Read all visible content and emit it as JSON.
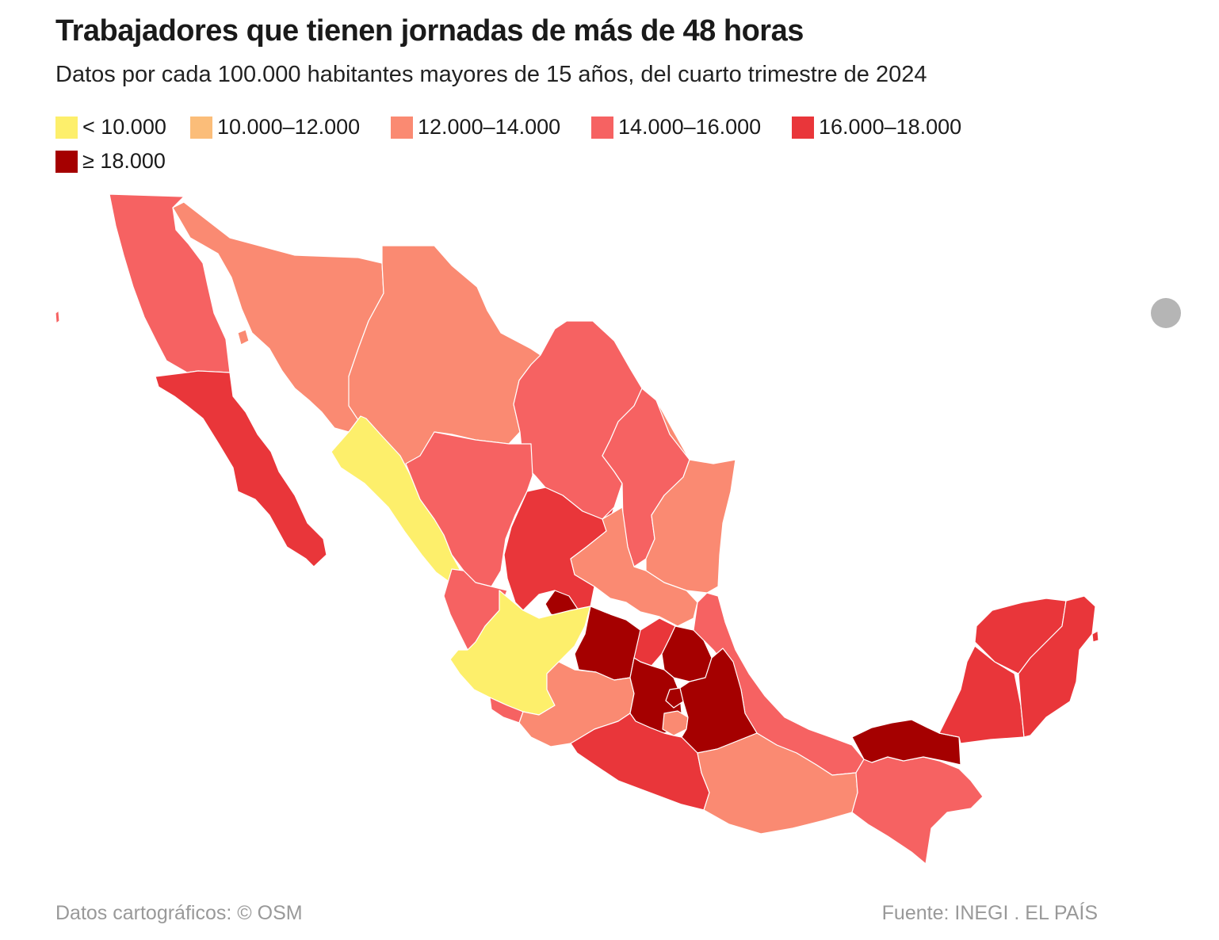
{
  "title": "Trabajadores que tienen jornadas de más de 48 horas",
  "subtitle": "Datos por cada 100.000 habitantes mayores de 15 años, del cuarto trimestre de 2024",
  "legend": [
    {
      "label": "< 10.000",
      "color": "#fdef6b"
    },
    {
      "label": "10.000–12.000",
      "color": "#fbbd79"
    },
    {
      "label": "12.000–14.000",
      "color": "#fa8a72"
    },
    {
      "label": "14.000–16.000",
      "color": "#f66262"
    },
    {
      "label": "16.000–18.000",
      "color": "#e9363a"
    },
    {
      "label": "≥ 18.000",
      "color": "#a50000"
    }
  ],
  "states": [
    {
      "name": "Baja California",
      "class": 3
    },
    {
      "name": "Baja California Sur",
      "class": 4
    },
    {
      "name": "Sonora",
      "class": 2
    },
    {
      "name": "Chihuahua",
      "class": 2
    },
    {
      "name": "Coahuila",
      "class": 3
    },
    {
      "name": "Nuevo León",
      "class": 3
    },
    {
      "name": "Tamaulipas",
      "class": 2
    },
    {
      "name": "Sinaloa",
      "class": 0
    },
    {
      "name": "Durango",
      "class": 3
    },
    {
      "name": "Zacatecas",
      "class": 4
    },
    {
      "name": "San Luis Potosí",
      "class": 2
    },
    {
      "name": "Nayarit",
      "class": 3
    },
    {
      "name": "Aguascalientes",
      "class": 5
    },
    {
      "name": "Jalisco",
      "class": 0
    },
    {
      "name": "Guanajuato",
      "class": 5
    },
    {
      "name": "Querétaro",
      "class": 4
    },
    {
      "name": "Hidalgo",
      "class": 5
    },
    {
      "name": "Veracruz",
      "class": 3
    },
    {
      "name": "Colima",
      "class": 3
    },
    {
      "name": "Michoacán",
      "class": 2
    },
    {
      "name": "Estado de México",
      "class": 5
    },
    {
      "name": "Ciudad de México",
      "class": 5
    },
    {
      "name": "Morelos",
      "class": 2
    },
    {
      "name": "Tlaxcala",
      "class": 5
    },
    {
      "name": "Puebla",
      "class": 5
    },
    {
      "name": "Guerrero",
      "class": 4
    },
    {
      "name": "Oaxaca",
      "class": 2
    },
    {
      "name": "Chiapas",
      "class": 3
    },
    {
      "name": "Tabasco",
      "class": 5
    },
    {
      "name": "Campeche",
      "class": 4
    },
    {
      "name": "Yucatán",
      "class": 4
    },
    {
      "name": "Quintana Roo",
      "class": 4
    }
  ],
  "footer": {
    "left": "Datos cartográficos: © OSM",
    "right": "Fuente: INEGI . EL PAÍS"
  }
}
